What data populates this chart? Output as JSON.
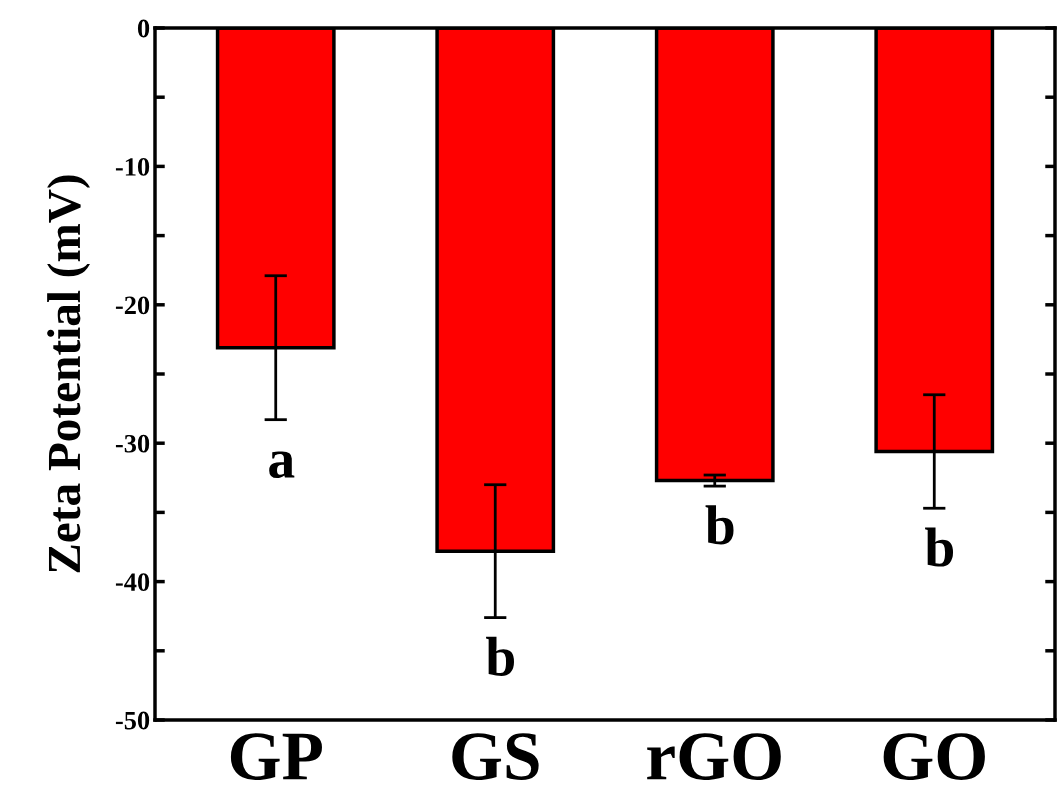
{
  "chart_data": {
    "type": "bar",
    "ylabel": "Zeta Potential (mV)",
    "categories": [
      "GP",
      "GS",
      "rGO",
      "GO"
    ],
    "values": [
      -23.1,
      -37.8,
      -32.7,
      -30.6
    ],
    "errors": [
      5.2,
      4.8,
      0.4,
      4.1
    ],
    "color": "#ff0000",
    "ylim": [
      -50,
      0
    ],
    "yticks": [
      -50,
      {
        "value": -45,
        "label": null
      },
      -40,
      {
        "value": -35,
        "label": null
      },
      -30,
      {
        "value": -25,
        "label": null
      },
      -20,
      {
        "value": -15,
        "label": null
      },
      -10,
      {
        "value": -5,
        "label": null
      },
      0
    ],
    "annotations": [
      "a",
      "b",
      "b",
      "b"
    ],
    "grid": false,
    "legend": false
  }
}
